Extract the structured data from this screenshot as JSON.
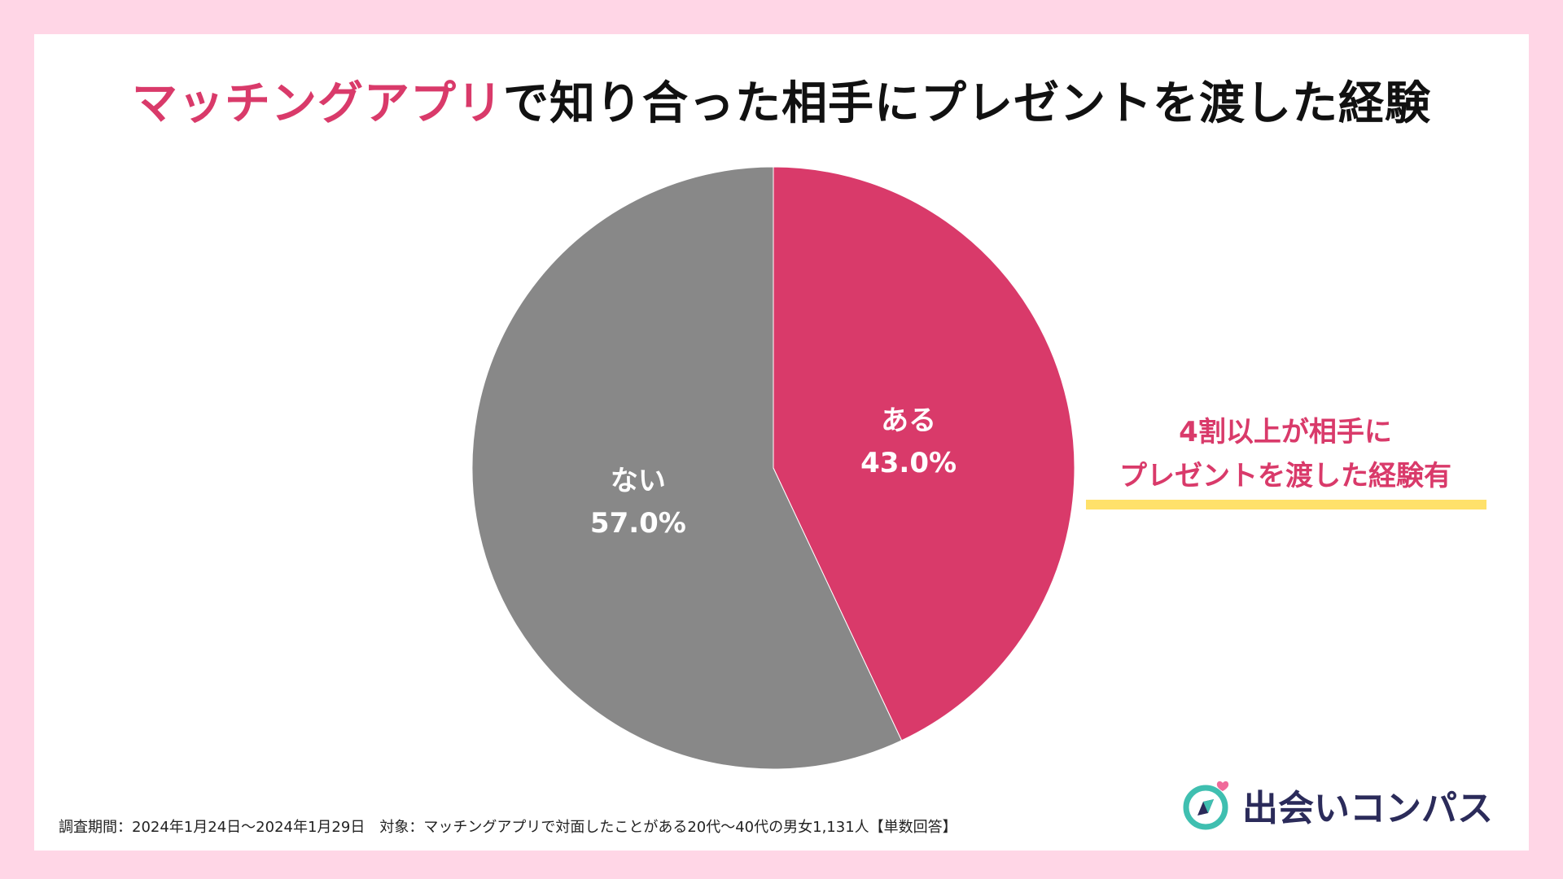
{
  "title": {
    "accent": "マッチングアプリ",
    "rest": "で知り合った相手にプレゼントを渡した経験"
  },
  "chart_data": {
    "type": "pie",
    "title": "マッチングアプリで知り合った相手にプレゼントを渡した経験",
    "slices": [
      {
        "label": "ある",
        "value": 43.0,
        "value_label": "43.0%",
        "color": "#d93a6a"
      },
      {
        "label": "ない",
        "value": 57.0,
        "value_label": "57.0%",
        "color": "#888888"
      }
    ],
    "start": "12 o'clock, clockwise"
  },
  "callout": {
    "line1": "4割以上が相手に",
    "line2": "プレゼントを渡した経験有"
  },
  "footnote": "調査期間：2024年1月24日～2024年1月29日　対象：マッチングアプリで対面したことがある20代～40代の男女1,131人【単数回答】",
  "logo": {
    "text": "出会いコンパス"
  },
  "colors": {
    "accent": "#d93a6a",
    "highlight": "#ffe16a",
    "background": "#ffd6e6",
    "logo": "#2b2b5a"
  }
}
